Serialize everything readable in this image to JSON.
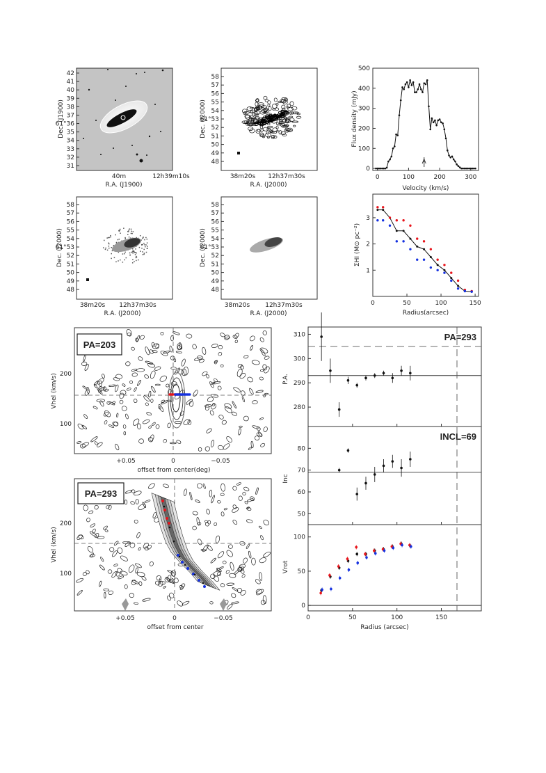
{
  "panels": {
    "optical": {
      "ylabel": "Dec. (J1900)",
      "xlabel": "R.A. (J1900)",
      "yticks": [
        "42",
        "41",
        "40",
        "39",
        "38",
        "37",
        "61°36",
        "35",
        "34",
        "33",
        "32",
        "31"
      ],
      "xticks": [
        "40m",
        "12h39m10s"
      ]
    },
    "mom0": {
      "ylabel": "Dec. (J2000)",
      "xlabel": "R.A. (J2000)",
      "yticks": [
        "58",
        "57",
        "56",
        "55",
        "54",
        "61°53",
        "52",
        "51",
        "50",
        "49",
        "48"
      ],
      "xticks": [
        "38m20s",
        "12h37m30s"
      ]
    },
    "mom1": {
      "ylabel": "Dec. (J2000)",
      "xlabel": "R.A. (J2000)",
      "yticks": [
        "58",
        "57",
        "56",
        "55",
        "54",
        "61°53",
        "52",
        "51",
        "50",
        "49",
        "48"
      ],
      "xticks": [
        "38m20s",
        "12h37m30s"
      ]
    },
    "model": {
      "ylabel": "Dec. (J2000)",
      "xlabel": "R.A. (J2000)",
      "yticks": [
        "58",
        "57",
        "56",
        "55",
        "54",
        "61°53",
        "52",
        "51",
        "50",
        "49",
        "48"
      ],
      "xticks": [
        "38m20s",
        "12h37m30s"
      ]
    },
    "pv1": {
      "box_label": "PA=203",
      "ylabel": "Vhel (km/s)",
      "xlabel": "offset from center(deg)",
      "xticks": [
        "+0.05",
        "0",
        "−0.05"
      ],
      "yticks": [
        "200",
        "100"
      ]
    },
    "pv2": {
      "box_label": "PA=293",
      "ylabel": "Vhel (km/s)",
      "xlabel": "offset from center",
      "xticks": [
        "+0.05",
        "0",
        "−0.05"
      ],
      "yticks": [
        "200",
        "100"
      ]
    }
  },
  "colors": {
    "red": "#e8141b",
    "blue": "#1531e0",
    "black": "#111111",
    "gray": "#888888"
  },
  "chart_data": [
    {
      "type": "line",
      "ylabel": "Flux density (mJy)",
      "xlabel": "Velocity (km/s)",
      "xlim": [
        -15,
        325
      ],
      "ylim": [
        -10,
        500
      ],
      "xticks": [
        0,
        100,
        200,
        300
      ],
      "yticks": [
        0,
        100,
        200,
        300,
        400,
        500
      ],
      "x": [
        -5,
        0,
        5,
        10,
        15,
        20,
        25,
        30,
        35,
        40,
        45,
        50,
        55,
        60,
        65,
        70,
        75,
        80,
        85,
        90,
        95,
        100,
        105,
        110,
        115,
        120,
        125,
        130,
        135,
        140,
        145,
        150,
        155,
        160,
        165,
        170,
        175,
        180,
        185,
        190,
        195,
        200,
        205,
        210,
        215,
        220,
        225,
        230,
        235,
        240,
        245,
        250,
        255,
        260,
        265,
        270,
        275,
        280,
        285,
        290,
        295,
        300,
        305,
        310,
        315
      ],
      "values": [
        0,
        0,
        0,
        0,
        0,
        0,
        0,
        4,
        35,
        45,
        60,
        100,
        110,
        170,
        165,
        265,
        340,
        405,
        395,
        420,
        430,
        405,
        440,
        415,
        430,
        380,
        380,
        395,
        420,
        395,
        380,
        425,
        420,
        440,
        310,
        195,
        250,
        230,
        240,
        215,
        240,
        245,
        230,
        225,
        195,
        150,
        90,
        65,
        55,
        60,
        45,
        35,
        20,
        12,
        5,
        0,
        0,
        0,
        0,
        0,
        0,
        0,
        0,
        0,
        0
      ],
      "annotation": "A"
    },
    {
      "type": "line",
      "ylabel": "ΣHI (M⊙ pc⁻²)",
      "xlabel": "Radius(arcsec)",
      "xlim": [
        0,
        155
      ],
      "ylim": [
        0,
        3.9
      ],
      "xticks": [
        0,
        50,
        100,
        150
      ],
      "yticks": [
        1,
        2,
        3
      ],
      "series": [
        {
          "x": [
            7,
            15,
            25,
            35,
            45,
            55,
            65,
            75,
            85,
            95,
            105,
            115,
            125,
            135,
            145
          ],
          "values": [
            3.3,
            3.3,
            3.0,
            2.5,
            2.5,
            2.2,
            1.9,
            1.8,
            1.5,
            1.2,
            1.0,
            0.7,
            0.4,
            0.2,
            0.18
          ]
        },
        {
          "x": [
            7,
            15,
            25,
            35,
            45,
            55,
            65,
            75,
            85,
            95,
            105,
            115,
            125,
            135,
            145
          ],
          "values": [
            3.4,
            3.4,
            3.0,
            2.9,
            2.9,
            2.7,
            2.2,
            2.1,
            1.8,
            1.4,
            1.2,
            0.9,
            0.6,
            0.25,
            0.2
          ]
        },
        {
          "x": [
            7,
            15,
            25,
            35,
            45,
            55,
            65,
            75,
            85,
            95,
            105,
            115,
            125,
            135,
            145
          ],
          "values": [
            2.9,
            2.9,
            2.7,
            2.1,
            2.1,
            1.8,
            1.4,
            1.4,
            1.1,
            1.0,
            0.9,
            0.6,
            0.3,
            0.2,
            0.18
          ]
        }
      ]
    },
    {
      "type": "scatter",
      "ylabel": "P.A.",
      "title": "PA=293",
      "xlim": [
        0,
        195
      ],
      "ylim": [
        272,
        313
      ],
      "yticks": [
        280,
        290,
        300,
        310
      ],
      "ref_lines": [
        293,
        305
      ],
      "x": [
        15,
        25,
        35,
        45,
        55,
        65,
        75,
        85,
        95,
        105,
        115
      ],
      "values": [
        309,
        295,
        279,
        291,
        289,
        292,
        293,
        294,
        292,
        295,
        294
      ]
    },
    {
      "type": "scatter",
      "ylabel": "Inc",
      "title": "INCL=69",
      "xlim": [
        0,
        195
      ],
      "ylim": [
        45,
        90
      ],
      "yticks": [
        50,
        60,
        70,
        80
      ],
      "ref_lines": [
        69
      ],
      "x": [
        35,
        45,
        55,
        65,
        75,
        85,
        95,
        105,
        115
      ],
      "values": [
        70,
        79,
        59,
        64,
        68,
        72,
        74,
        71,
        75
      ]
    },
    {
      "type": "scatter",
      "ylabel": "Vrot",
      "xlabel": "Radius (arcsec)",
      "xlim": [
        0,
        195
      ],
      "ylim": [
        -8,
        118
      ],
      "xticks": [
        0,
        50,
        100,
        150
      ],
      "yticks": [
        0,
        50,
        100
      ],
      "series": [
        {
          "x": [
            15,
            25,
            35,
            45,
            55,
            65,
            75,
            85,
            95,
            105,
            115
          ],
          "values": [
            22,
            42,
            55,
            65,
            75,
            75,
            80,
            82,
            86,
            90,
            87
          ]
        },
        {
          "x": [
            15,
            25,
            35,
            45,
            55,
            65,
            75,
            85,
            95,
            105,
            115
          ],
          "values": [
            18,
            44,
            57,
            68,
            85,
            75,
            80,
            82,
            86,
            90,
            88
          ]
        },
        {
          "x": [
            15,
            25,
            35,
            45,
            55,
            65,
            75,
            85,
            95,
            105,
            115
          ],
          "values": [
            23,
            24,
            40,
            52,
            62,
            70,
            76,
            80,
            84,
            88,
            86
          ]
        }
      ]
    }
  ]
}
